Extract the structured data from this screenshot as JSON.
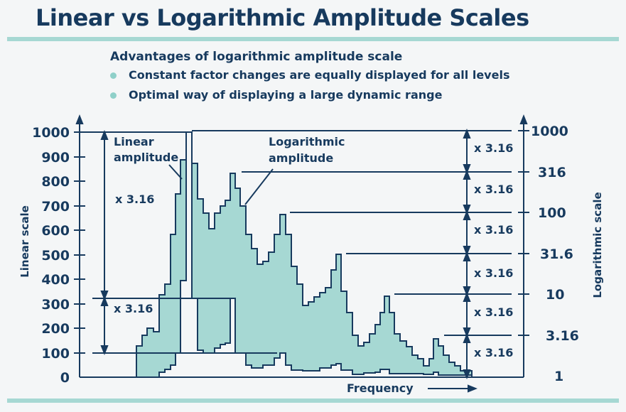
{
  "title": "Linear vs Logarithmic Amplitude Scales",
  "advantages": {
    "heading": "Advantages of logarithmic amplitude scale",
    "items": [
      "Constant factor changes are equally displayed for all levels",
      "Optimal way of displaying a large dynamic range"
    ]
  },
  "diagram": {
    "left_axis_title": "Linear scale",
    "right_axis_title": "Logarithmic scale",
    "x_axis_title": "Frequency",
    "left_ticks": [
      "1000",
      "900",
      "800",
      "700",
      "600",
      "500",
      "400",
      "300",
      "200",
      "100",
      "0"
    ],
    "right_ticks": [
      "1000",
      "316",
      "100",
      "31.6",
      "10",
      "3.16",
      "1"
    ],
    "linear_label": "Linear amplitude",
    "log_label": "Logarithmic amplitude",
    "left_factor_labels": [
      "x 3.16",
      "x 3.16"
    ],
    "right_factor_labels": [
      "x 3.16",
      "x 3.16",
      "x 3.16",
      "x 3.16",
      "x 3.16",
      "x 3.16"
    ],
    "colors": {
      "ink": "#173a5e",
      "fill": "#a6d8d3",
      "rule": "#a6d8d3"
    }
  }
}
